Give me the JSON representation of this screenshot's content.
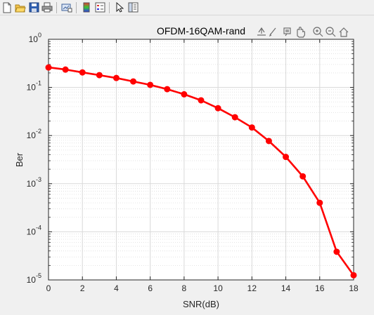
{
  "toolbar": {
    "items": [
      {
        "name": "new-figure-icon"
      },
      {
        "name": "open-file-icon"
      },
      {
        "name": "save-figure-icon"
      },
      {
        "name": "print-figure-icon"
      },
      {
        "name": "link-plot-icon"
      },
      {
        "name": "insert-colorbar-icon"
      },
      {
        "name": "insert-legend-icon"
      },
      {
        "name": "edit-plot-icon"
      },
      {
        "name": "property-inspector-icon"
      }
    ]
  },
  "axes_toolbar": {
    "items": [
      "export-icon",
      "brush-icon",
      "datatip-icon",
      "pan-icon",
      "zoom-in-icon",
      "zoom-out-icon",
      "restore-view-icon"
    ]
  },
  "chart_data": {
    "type": "line",
    "title": "OFDM-16QAM-rand",
    "xlabel": "SNR(dB)",
    "ylabel": "Ber",
    "yscale": "log",
    "xlim": [
      0,
      18
    ],
    "ylim": [
      1e-05,
      1
    ],
    "grid": true,
    "minor_grid": true,
    "x_ticks": [
      "0",
      "2",
      "4",
      "6",
      "8",
      "10",
      "12",
      "14",
      "16",
      "18"
    ],
    "y_ticks": [
      {
        "base": "10",
        "exp": "-5"
      },
      {
        "base": "10",
        "exp": "-4"
      },
      {
        "base": "10",
        "exp": "-3"
      },
      {
        "base": "10",
        "exp": "-2"
      },
      {
        "base": "10",
        "exp": "-1"
      },
      {
        "base": "10",
        "exp": "0"
      }
    ],
    "series": [
      {
        "color": "#ff0000",
        "marker": "circle",
        "x": [
          0,
          1,
          2,
          3,
          4,
          5,
          6,
          7,
          8,
          9,
          10,
          11,
          12,
          13,
          14,
          15,
          16,
          17,
          18
        ],
        "y": [
          0.26,
          0.235,
          0.205,
          0.18,
          0.157,
          0.133,
          0.113,
          0.092,
          0.072,
          0.054,
          0.037,
          0.024,
          0.0147,
          0.0077,
          0.0036,
          0.00142,
          0.0004,
          3.85e-05,
          1.25e-05
        ]
      }
    ]
  }
}
